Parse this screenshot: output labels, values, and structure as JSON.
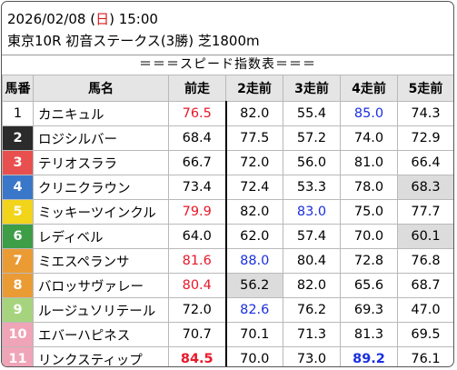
{
  "header": {
    "date_prefix": "2026/02/08 (",
    "weekday": "日",
    "date_suffix": ") 15:00",
    "race_line": "東京10R 初音ステークス(3勝) 芝1800m"
  },
  "table_title": "＝＝＝スピード指数表＝＝＝",
  "columns": [
    "馬番",
    "馬名",
    "前走",
    "2走前",
    "3走前",
    "4走前",
    "5走前"
  ],
  "colors": {
    "red": "#e8182a",
    "blue": "#1a2fe0",
    "gray_cell": "#dcdcdc",
    "header_bg": "#e5e5e5"
  },
  "rows": [
    {
      "num": "1",
      "num_bg": "#ffffff",
      "num_color": "#000000",
      "name": "カニキュル",
      "values": [
        "76.5",
        "82.0",
        "55.4",
        "85.0",
        "74.3"
      ],
      "styles": [
        "red",
        "",
        "",
        "blue",
        ""
      ]
    },
    {
      "num": "2",
      "num_bg": "#2b2b2b",
      "num_color": "#ffffff",
      "name": "ロジシルバー",
      "values": [
        "68.4",
        "77.5",
        "57.2",
        "74.0",
        "72.9"
      ],
      "styles": [
        "",
        "",
        "",
        "",
        ""
      ]
    },
    {
      "num": "3",
      "num_bg": "#e8504f",
      "num_color": "#ffffff",
      "name": "テリオスララ",
      "values": [
        "66.7",
        "72.0",
        "56.0",
        "81.0",
        "66.4"
      ],
      "styles": [
        "",
        "",
        "",
        "",
        ""
      ]
    },
    {
      "num": "4",
      "num_bg": "#3b77c8",
      "num_color": "#ffffff",
      "name": "クリニクラウン",
      "values": [
        "73.4",
        "72.4",
        "53.3",
        "78.0",
        "68.3"
      ],
      "styles": [
        "",
        "",
        "",
        "",
        "gray"
      ]
    },
    {
      "num": "5",
      "num_bg": "#f2d41a",
      "num_color": "#ffffff",
      "name": "ミッキーツインクル",
      "values": [
        "79.9",
        "82.0",
        "83.0",
        "75.0",
        "77.7"
      ],
      "styles": [
        "red",
        "",
        "blue",
        "",
        ""
      ]
    },
    {
      "num": "6",
      "num_bg": "#3e9d47",
      "num_color": "#ffffff",
      "name": "レディベル",
      "values": [
        "64.0",
        "62.0",
        "57.4",
        "70.0",
        "60.1"
      ],
      "styles": [
        "",
        "",
        "",
        "",
        "gray"
      ]
    },
    {
      "num": "7",
      "num_bg": "#eb9b34",
      "num_color": "#ffffff",
      "name": "ミエスペランサ",
      "values": [
        "81.6",
        "88.0",
        "80.4",
        "72.8",
        "76.8"
      ],
      "styles": [
        "red",
        "blue",
        "",
        "",
        ""
      ]
    },
    {
      "num": "8",
      "num_bg": "#eb9b34",
      "num_color": "#ffffff",
      "name": "バロッサヴァレー",
      "values": [
        "80.4",
        "56.2",
        "82.0",
        "65.6",
        "68.7"
      ],
      "styles": [
        "red",
        "gray",
        "",
        "",
        ""
      ]
    },
    {
      "num": "9",
      "num_bg": "#a6d47e",
      "num_color": "#ffffff",
      "name": "ルージュソリテール",
      "values": [
        "72.0",
        "82.6",
        "76.2",
        "69.3",
        "47.0"
      ],
      "styles": [
        "",
        "blue",
        "",
        "",
        ""
      ]
    },
    {
      "num": "10",
      "num_bg": "#f0a4b7",
      "num_color": "#ffffff",
      "name": "エバーハピネス",
      "values": [
        "70.7",
        "70.1",
        "71.3",
        "81.3",
        "69.5"
      ],
      "styles": [
        "",
        "",
        "",
        "",
        ""
      ]
    },
    {
      "num": "11",
      "num_bg": "#f0a4b7",
      "num_color": "#ffffff",
      "name": "リンクスティップ",
      "values": [
        "84.5",
        "70.0",
        "73.0",
        "89.2",
        "76.1"
      ],
      "styles": [
        "red bold",
        "",
        "",
        "blue bold",
        ""
      ]
    }
  ]
}
